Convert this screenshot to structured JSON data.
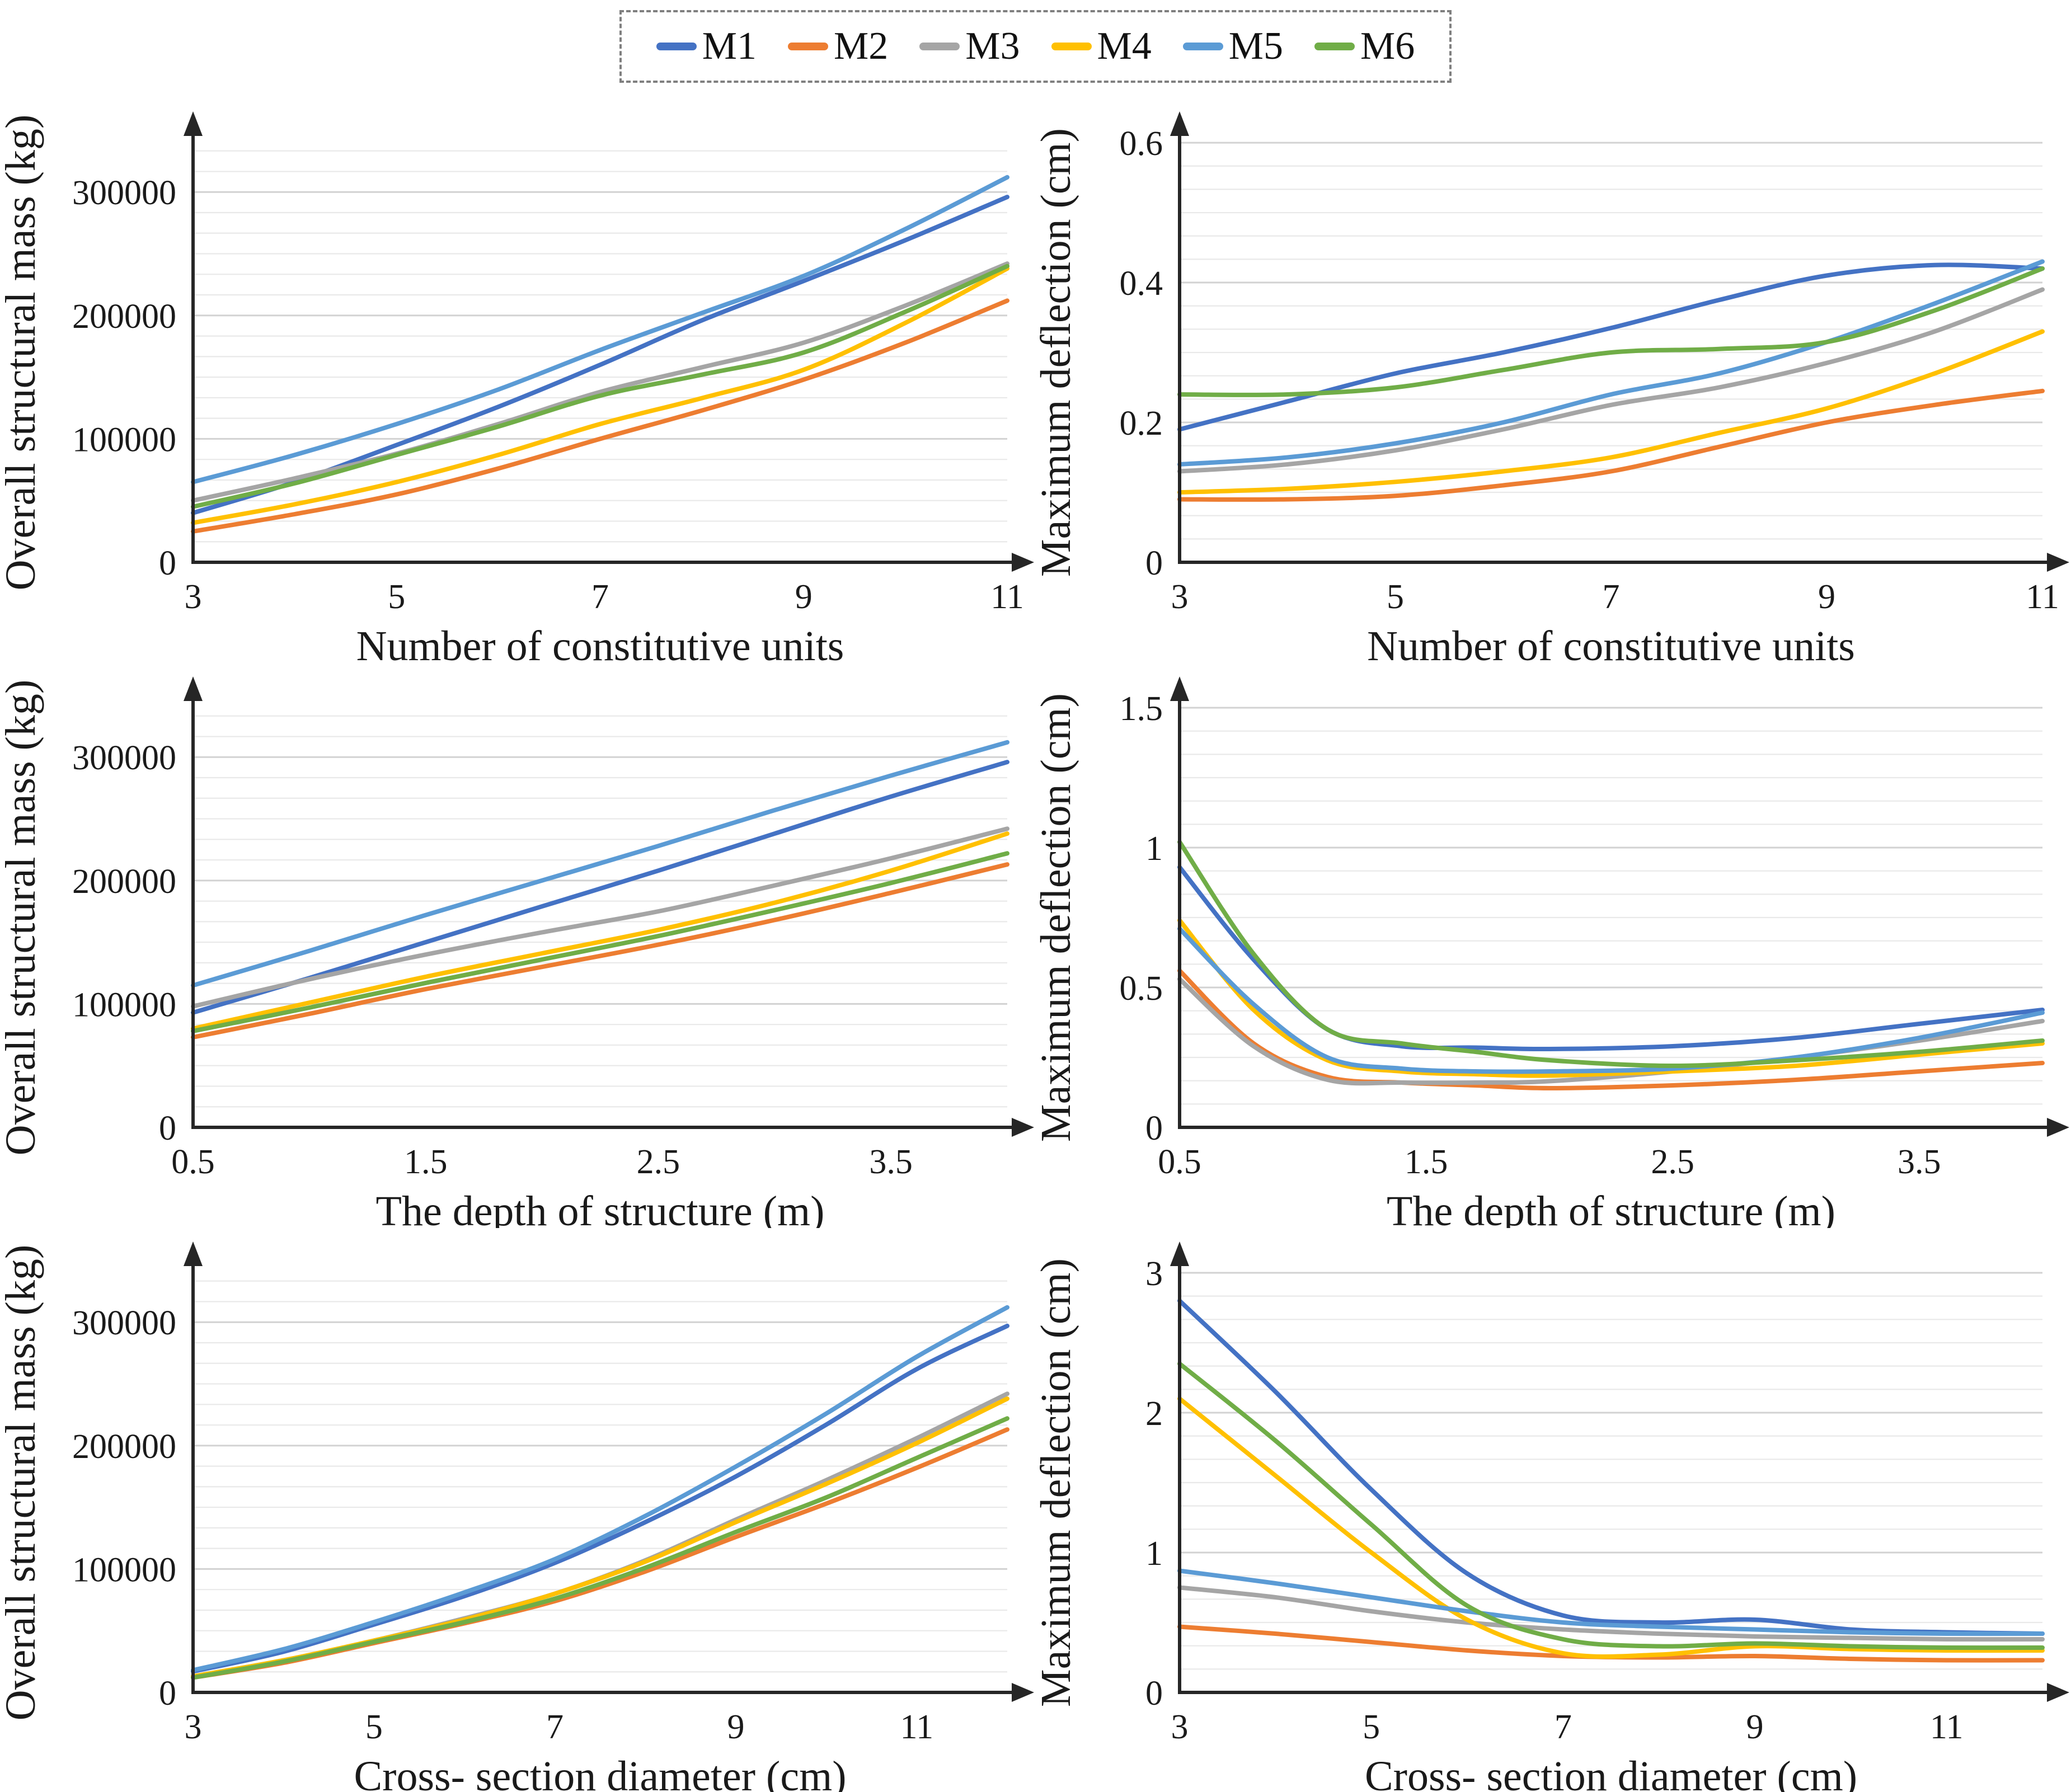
{
  "figure": {
    "background": "#ffffff",
    "axis_color": "#262626",
    "grid_major_color": "#d2d2d2",
    "grid_minor_color": "#e9e9e9"
  },
  "legend": {
    "position": "top-center",
    "border_style": "dashed",
    "items": [
      {
        "label": "M1",
        "color": "#4472C4"
      },
      {
        "label": "M2",
        "color": "#ED7D31"
      },
      {
        "label": "M3",
        "color": "#A5A5A5"
      },
      {
        "label": "M4",
        "color": "#FFC000"
      },
      {
        "label": "M5",
        "color": "#5B9BD5"
      },
      {
        "label": "M6",
        "color": "#70AD47"
      }
    ]
  },
  "chart_data": [
    {
      "id": "mass-vs-units",
      "type": "line",
      "title": "",
      "xlabel": "Number of constitutive units",
      "ylabel": "Overall structural mass (kg)",
      "xlim": [
        3,
        11
      ],
      "ylim": [
        0,
        340000
      ],
      "x_ticks": [
        3,
        5,
        7,
        9,
        11
      ],
      "x_tick_labels": [
        "3",
        "5",
        "7",
        "9",
        "11"
      ],
      "y_ticks": [
        0,
        100000,
        200000,
        300000
      ],
      "y_tick_labels": [
        "0",
        "100000",
        "200000",
        "300000"
      ],
      "y_minor_step": 16666.67,
      "grid": true,
      "x": [
        3,
        4,
        5,
        6,
        7,
        8,
        9,
        10,
        11
      ],
      "series": [
        {
          "name": "M1",
          "values": [
            40000,
            65000,
            95000,
            126000,
            160000,
            196000,
            228000,
            261000,
            296000
          ]
        },
        {
          "name": "M2",
          "values": [
            25000,
            39000,
            55000,
            76000,
            100000,
            123000,
            148000,
            178000,
            212000
          ]
        },
        {
          "name": "M3",
          "values": [
            50000,
            68000,
            88000,
            112000,
            138000,
            158000,
            178000,
            208000,
            242000
          ]
        },
        {
          "name": "M4",
          "values": [
            32000,
            47000,
            65000,
            87000,
            112000,
            133000,
            156000,
            194000,
            238000
          ]
        },
        {
          "name": "M5",
          "values": [
            65000,
            87000,
            112000,
            140000,
            172000,
            202000,
            232000,
            270000,
            312000
          ]
        },
        {
          "name": "M6",
          "values": [
            45000,
            64000,
            87000,
            110000,
            135000,
            152000,
            170000,
            203000,
            240000
          ]
        }
      ]
    },
    {
      "id": "deflection-vs-units",
      "type": "line",
      "title": "",
      "xlabel": "Number of constitutive units",
      "ylabel": "Maximum deflection (cm)",
      "xlim": [
        3,
        11
      ],
      "ylim": [
        0,
        0.6
      ],
      "x_ticks": [
        3,
        5,
        7,
        9,
        11
      ],
      "x_tick_labels": [
        "3",
        "5",
        "7",
        "9",
        "11"
      ],
      "y_ticks": [
        0,
        0.2,
        0.4,
        0.6
      ],
      "y_tick_labels": [
        "0",
        "0.2",
        "0.4",
        "0.6"
      ],
      "y_minor_step": 0.03333,
      "grid": true,
      "x": [
        3,
        4,
        5,
        6,
        7,
        8,
        9,
        10,
        11
      ],
      "series": [
        {
          "name": "M1",
          "values": [
            0.19,
            0.23,
            0.27,
            0.3,
            0.335,
            0.375,
            0.41,
            0.425,
            0.42
          ]
        },
        {
          "name": "M2",
          "values": [
            0.09,
            0.09,
            0.095,
            0.11,
            0.13,
            0.165,
            0.2,
            0.225,
            0.245
          ]
        },
        {
          "name": "M3",
          "values": [
            0.13,
            0.14,
            0.16,
            0.19,
            0.225,
            0.25,
            0.285,
            0.33,
            0.39
          ]
        },
        {
          "name": "M4",
          "values": [
            0.1,
            0.105,
            0.115,
            0.13,
            0.15,
            0.185,
            0.22,
            0.27,
            0.33
          ]
        },
        {
          "name": "M5",
          "values": [
            0.14,
            0.15,
            0.17,
            0.2,
            0.24,
            0.27,
            0.315,
            0.37,
            0.43
          ]
        },
        {
          "name": "M6",
          "values": [
            0.24,
            0.24,
            0.25,
            0.275,
            0.3,
            0.305,
            0.315,
            0.36,
            0.42
          ]
        }
      ]
    },
    {
      "id": "mass-vs-depth",
      "type": "line",
      "title": "",
      "xlabel": "The depth of structure (m)",
      "ylabel": "Overall structural mass (kg)",
      "xlim": [
        0.5,
        4
      ],
      "ylim": [
        0,
        340000
      ],
      "x_ticks": [
        0.5,
        1.5,
        2.5,
        3.5
      ],
      "x_tick_labels": [
        "0.5",
        "1.5",
        "2.5",
        "3.5"
      ],
      "y_ticks": [
        0,
        100000,
        200000,
        300000
      ],
      "y_tick_labels": [
        "0",
        "100000",
        "200000",
        "300000"
      ],
      "y_minor_step": 16666.67,
      "grid": true,
      "x": [
        0.5,
        1,
        1.5,
        2,
        2.5,
        3,
        3.5,
        4
      ],
      "series": [
        {
          "name": "M1",
          "values": [
            93000,
            121000,
            150000,
            179000,
            208000,
            238000,
            268000,
            296000
          ]
        },
        {
          "name": "M2",
          "values": [
            73000,
            92000,
            112000,
            130000,
            148000,
            168000,
            190000,
            213000
          ]
        },
        {
          "name": "M3",
          "values": [
            98000,
            120000,
            140000,
            158000,
            175000,
            196000,
            218000,
            242000
          ]
        },
        {
          "name": "M4",
          "values": [
            80000,
            101000,
            122000,
            141000,
            160000,
            182000,
            208000,
            238000
          ]
        },
        {
          "name": "M5",
          "values": [
            115000,
            143000,
            172000,
            200000,
            228000,
            257000,
            285000,
            312000
          ]
        },
        {
          "name": "M6",
          "values": [
            78000,
            97000,
            117000,
            136000,
            155000,
            176000,
            198000,
            222000
          ]
        }
      ]
    },
    {
      "id": "deflection-vs-depth",
      "type": "line",
      "title": "",
      "xlabel": "The depth of structure (m)",
      "ylabel": "Maximum deflection (cm)",
      "xlim": [
        0.5,
        4
      ],
      "ylim": [
        0,
        1.5
      ],
      "x_ticks": [
        0.5,
        1.5,
        2.5,
        3.5
      ],
      "x_tick_labels": [
        "0.5",
        "1.5",
        "2.5",
        "3.5"
      ],
      "y_ticks": [
        0,
        0.5,
        1,
        1.5
      ],
      "y_tick_labels": [
        "0",
        "0.5",
        "1",
        "1.5"
      ],
      "y_minor_step": 0.08333,
      "grid": true,
      "x": [
        0.5,
        0.8,
        1.1,
        1.4,
        1.7,
        2,
        2.5,
        3,
        3.5,
        4
      ],
      "series": [
        {
          "name": "M1",
          "values": [
            0.93,
            0.6,
            0.35,
            0.29,
            0.285,
            0.28,
            0.29,
            0.32,
            0.37,
            0.42
          ]
        },
        {
          "name": "M2",
          "values": [
            0.56,
            0.3,
            0.18,
            0.16,
            0.15,
            0.14,
            0.15,
            0.17,
            0.2,
            0.23
          ]
        },
        {
          "name": "M3",
          "values": [
            0.53,
            0.29,
            0.17,
            0.16,
            0.16,
            0.165,
            0.2,
            0.25,
            0.31,
            0.38
          ]
        },
        {
          "name": "M4",
          "values": [
            0.74,
            0.42,
            0.24,
            0.2,
            0.19,
            0.185,
            0.2,
            0.22,
            0.26,
            0.3
          ]
        },
        {
          "name": "M5",
          "values": [
            0.71,
            0.44,
            0.25,
            0.21,
            0.2,
            0.2,
            0.21,
            0.25,
            0.32,
            0.41
          ]
        },
        {
          "name": "M6",
          "values": [
            1.02,
            0.62,
            0.35,
            0.3,
            0.27,
            0.24,
            0.22,
            0.24,
            0.27,
            0.31
          ]
        }
      ]
    },
    {
      "id": "mass-vs-diameter",
      "type": "line",
      "title": "",
      "xlabel": "Cross- section diameter (cm)",
      "ylabel": "Overall structural mass (kg)",
      "xlim": [
        3,
        12
      ],
      "ylim": [
        0,
        340000
      ],
      "x_ticks": [
        3,
        5,
        7,
        9,
        11
      ],
      "x_tick_labels": [
        "3",
        "5",
        "7",
        "9",
        "11"
      ],
      "y_ticks": [
        0,
        100000,
        200000,
        300000
      ],
      "y_tick_labels": [
        "0",
        "100000",
        "200000",
        "300000"
      ],
      "y_minor_step": 16666.67,
      "grid": true,
      "x": [
        3,
        4,
        5,
        6,
        7,
        8,
        9,
        10,
        11,
        12
      ],
      "series": [
        {
          "name": "M1",
          "values": [
            17000,
            33000,
            55000,
            78000,
            105000,
            138000,
            175000,
            217000,
            262000,
            297000
          ]
        },
        {
          "name": "M2",
          "values": [
            12000,
            24000,
            40000,
            56000,
            74000,
            98000,
            126000,
            153000,
            182000,
            213000
          ]
        },
        {
          "name": "M3",
          "values": [
            13000,
            26000,
            42000,
            60000,
            80000,
            107000,
            140000,
            172000,
            206000,
            242000
          ]
        },
        {
          "name": "M4",
          "values": [
            13000,
            26000,
            42000,
            59000,
            80000,
            106000,
            138000,
            169000,
            202000,
            238000
          ]
        },
        {
          "name": "M5",
          "values": [
            18000,
            35000,
            57000,
            81000,
            108000,
            143000,
            183000,
            226000,
            272000,
            312000
          ]
        },
        {
          "name": "M6",
          "values": [
            12000,
            25000,
            41000,
            57000,
            76000,
            101000,
            130000,
            158000,
            190000,
            222000
          ]
        }
      ]
    },
    {
      "id": "deflection-vs-diameter",
      "type": "line",
      "title": "",
      "xlabel": "Cross- section diameter (cm)",
      "ylabel": "Maximum deflection (cm)",
      "xlim": [
        3,
        12
      ],
      "ylim": [
        0,
        3
      ],
      "x_ticks": [
        3,
        5,
        7,
        9,
        11
      ],
      "x_tick_labels": [
        "3",
        "5",
        "7",
        "9",
        "11"
      ],
      "y_ticks": [
        0,
        1,
        2,
        3
      ],
      "y_tick_labels": [
        "0",
        "1",
        "2",
        "3"
      ],
      "y_minor_step": 0.16667,
      "grid": true,
      "x": [
        3,
        4,
        5,
        6,
        7,
        8,
        9,
        10,
        11,
        12
      ],
      "series": [
        {
          "name": "M1",
          "values": [
            2.8,
            2.15,
            1.45,
            0.85,
            0.55,
            0.5,
            0.52,
            0.45,
            0.43,
            0.42
          ]
        },
        {
          "name": "M2",
          "values": [
            0.47,
            0.42,
            0.36,
            0.3,
            0.26,
            0.25,
            0.26,
            0.24,
            0.23,
            0.23
          ]
        },
        {
          "name": "M3",
          "values": [
            0.75,
            0.68,
            0.58,
            0.5,
            0.45,
            0.42,
            0.4,
            0.39,
            0.38,
            0.38
          ]
        },
        {
          "name": "M4",
          "values": [
            2.1,
            1.55,
            1.0,
            0.52,
            0.28,
            0.27,
            0.33,
            0.31,
            0.3,
            0.3
          ]
        },
        {
          "name": "M5",
          "values": [
            0.87,
            0.78,
            0.68,
            0.58,
            0.5,
            0.47,
            0.45,
            0.43,
            0.42,
            0.42
          ]
        },
        {
          "name": "M6",
          "values": [
            2.35,
            1.8,
            1.2,
            0.62,
            0.38,
            0.33,
            0.35,
            0.33,
            0.32,
            0.32
          ]
        }
      ]
    }
  ]
}
